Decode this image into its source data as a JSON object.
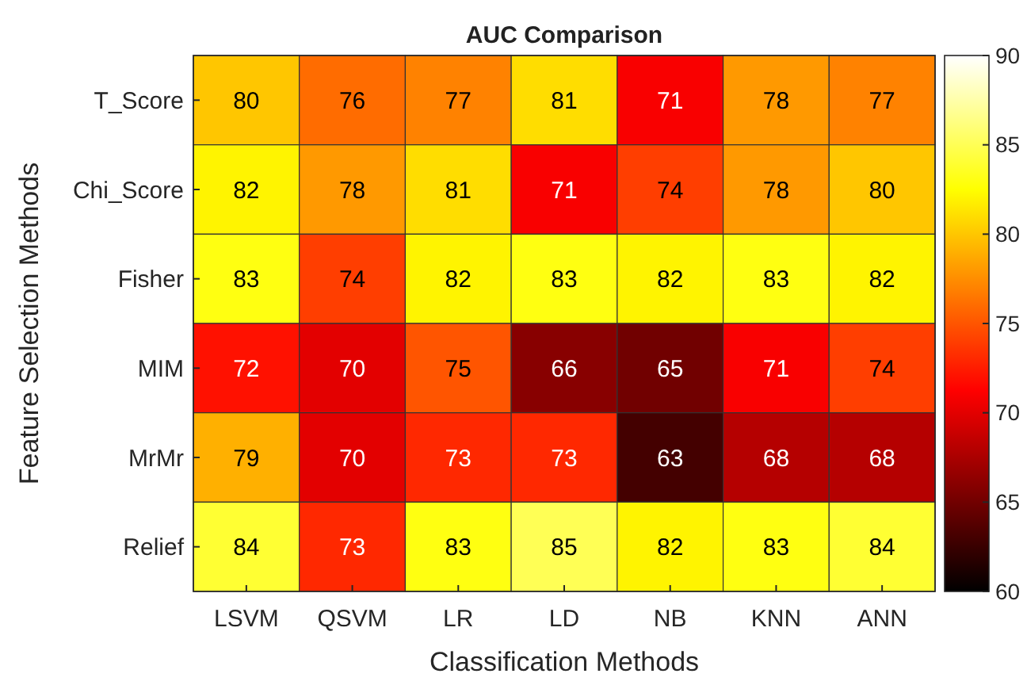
{
  "chart_data": {
    "type": "heatmap",
    "title": "AUC Comparison",
    "xlabel": "Classification Methods",
    "ylabel": "Feature Selection Methods",
    "categories": [
      "LSVM",
      "QSVM",
      "LR",
      "LD",
      "NB",
      "KNN",
      "ANN"
    ],
    "y_categories": [
      "T_Score",
      "Chi_Score",
      "Fisher",
      "MIM",
      "MrMr",
      "Relief"
    ],
    "cells": [
      [
        80,
        76,
        77,
        81,
        71,
        78,
        77
      ],
      [
        82,
        78,
        81,
        71,
        74,
        78,
        80
      ],
      [
        83,
        74,
        82,
        83,
        82,
        83,
        82
      ],
      [
        72,
        70,
        75,
        66,
        65,
        71,
        74
      ],
      [
        79,
        70,
        73,
        73,
        63,
        68,
        68
      ],
      [
        84,
        73,
        83,
        85,
        82,
        83,
        84
      ]
    ],
    "data_labels": true,
    "clim": [
      60,
      90
    ],
    "cticks": [
      60,
      65,
      70,
      75,
      80,
      85,
      90
    ]
  }
}
